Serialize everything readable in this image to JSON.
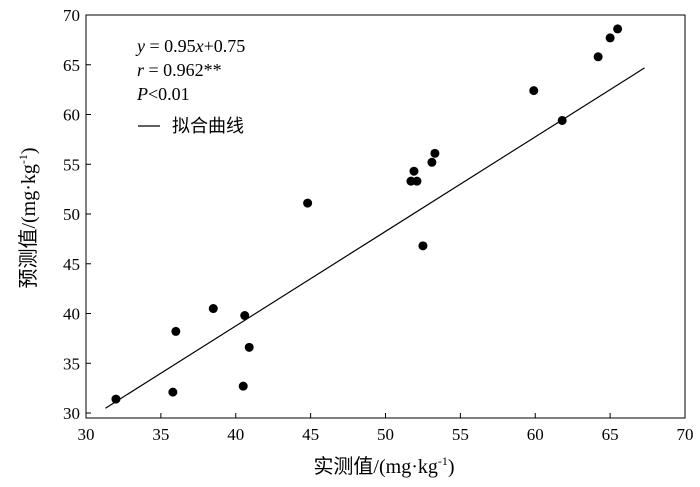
{
  "chart_data": {
    "type": "scatter",
    "xlabel": "实测值/(mg·kg-1)",
    "xlabel_main": "实测值/(mg·kg",
    "xlabel_sup": "-1",
    "xlabel_close": ")",
    "ylabel": "预测值/(mg·kg-1)",
    "ylabel_main": "预测值/(mg·kg",
    "ylabel_sup": "-1",
    "ylabel_close": ")",
    "xlim": [
      30,
      70
    ],
    "ylim": [
      29.5,
      70
    ],
    "xticks": [
      30,
      35,
      40,
      45,
      50,
      55,
      60,
      65,
      70
    ],
    "yticks": [
      30,
      35,
      40,
      45,
      50,
      55,
      60,
      65,
      70
    ],
    "grid": false,
    "points": [
      {
        "x": 32.0,
        "y": 31.4
      },
      {
        "x": 35.8,
        "y": 32.1
      },
      {
        "x": 36.0,
        "y": 38.2
      },
      {
        "x": 38.5,
        "y": 40.5
      },
      {
        "x": 40.5,
        "y": 32.7
      },
      {
        "x": 40.6,
        "y": 39.8
      },
      {
        "x": 40.9,
        "y": 36.6
      },
      {
        "x": 44.8,
        "y": 51.1
      },
      {
        "x": 51.7,
        "y": 53.3
      },
      {
        "x": 51.9,
        "y": 54.3
      },
      {
        "x": 52.1,
        "y": 53.3
      },
      {
        "x": 52.5,
        "y": 46.8
      },
      {
        "x": 53.1,
        "y": 55.2
      },
      {
        "x": 53.3,
        "y": 56.1
      },
      {
        "x": 59.9,
        "y": 62.4
      },
      {
        "x": 61.8,
        "y": 59.4
      },
      {
        "x": 64.2,
        "y": 65.8
      },
      {
        "x": 65.0,
        "y": 67.7
      },
      {
        "x": 65.5,
        "y": 68.6
      }
    ],
    "fit_line": {
      "slope": 0.95,
      "intercept": 0.75,
      "x_range": [
        31.3,
        67.3
      ]
    },
    "annotations": {
      "equation_y": "y",
      "equation_rest": " = 0.95",
      "equation_x": "x",
      "equation_tail": "+0.75",
      "r_symbol": "r",
      "r_value": " = 0.962**",
      "p_symbol": "P",
      "p_value": "<0.01",
      "legend_label": "拟合曲线"
    }
  }
}
